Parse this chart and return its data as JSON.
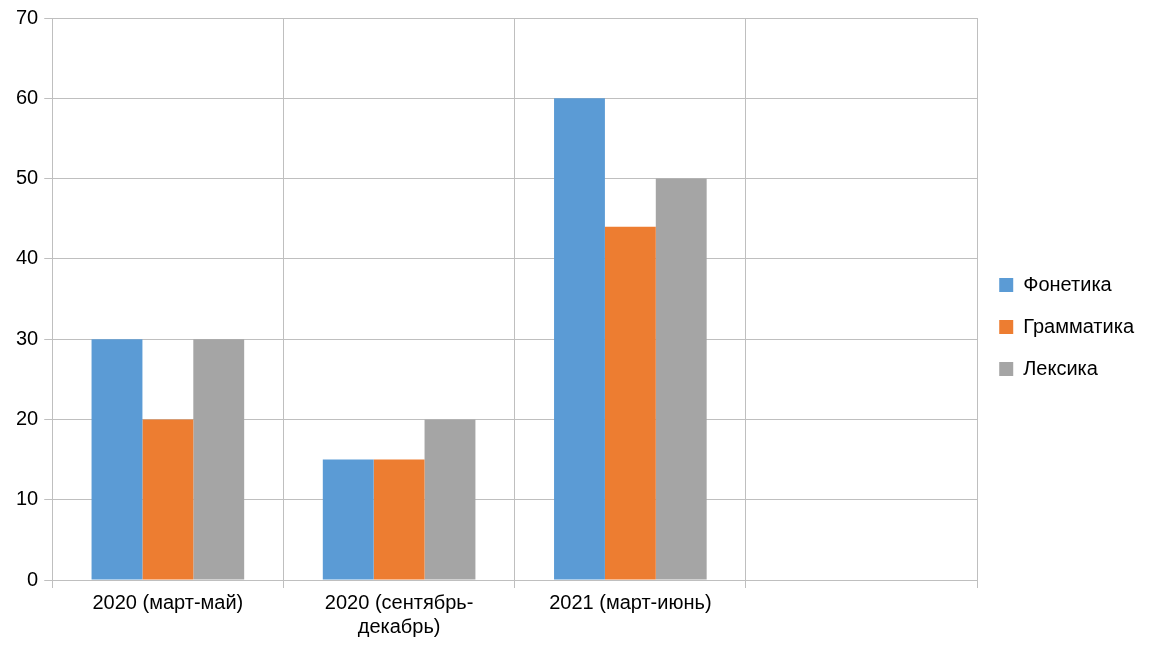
{
  "chart_data": {
    "type": "bar",
    "categories": [
      "2020 (март-май)",
      "2020 (сентябрь-декабрь)",
      "2021 (март-июнь)",
      null
    ],
    "series": [
      {
        "name": "Фонетика",
        "color": "#5b9bd5",
        "values": [
          30,
          15,
          60,
          null
        ]
      },
      {
        "name": "Грамматика",
        "color": "#ed7d31",
        "values": [
          20,
          15,
          44,
          null
        ]
      },
      {
        "name": "Лексика",
        "color": "#a5a5a5",
        "values": [
          30,
          20,
          50,
          null
        ]
      }
    ],
    "ylim": [
      0,
      70
    ],
    "yticks": [
      0,
      10,
      20,
      30,
      40,
      50,
      60,
      70
    ],
    "grid": true,
    "legend": "right"
  }
}
